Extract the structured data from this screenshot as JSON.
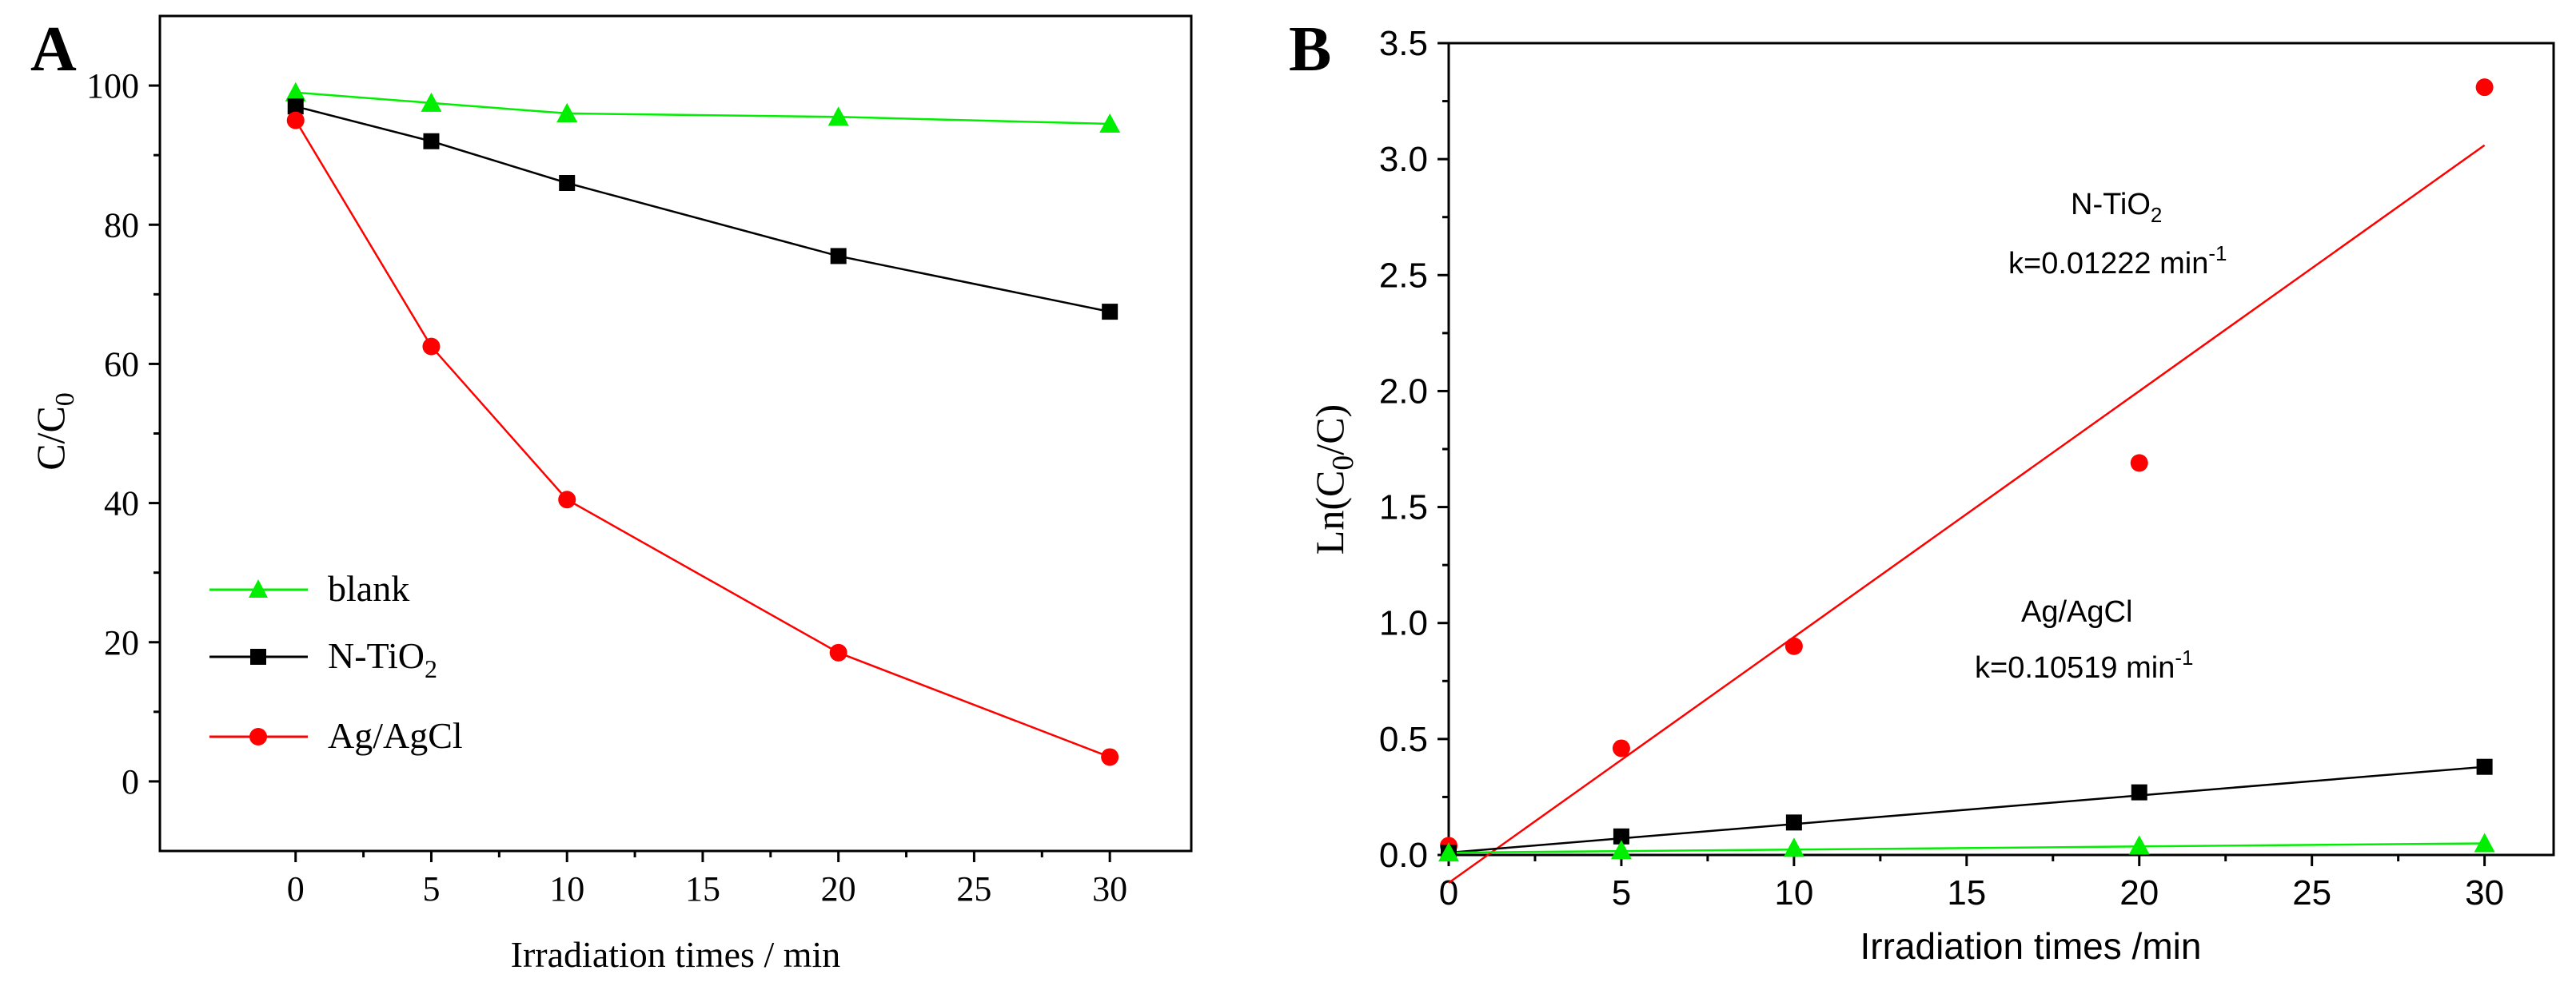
{
  "chart_data": [
    {
      "panel_label": "A",
      "type": "line",
      "xlabel": "Irradiation times / min",
      "ylabel": "C/C",
      "ylabel_sub": "0",
      "xlim": [
        -5,
        33
      ],
      "ylim": [
        -10,
        110
      ],
      "xticks": [
        0,
        5,
        10,
        15,
        20,
        25,
        30
      ],
      "yticks": [
        0,
        20,
        40,
        60,
        80,
        100
      ],
      "grid": false,
      "legend_position": "bottom-left",
      "series": [
        {
          "name": "blank",
          "name_main": "blank",
          "name_sub": "",
          "marker": "triangle",
          "color": "#00ee00",
          "x": [
            0,
            5,
            10,
            20,
            30
          ],
          "y": [
            99,
            97.5,
            96,
            95.5,
            94.5
          ]
        },
        {
          "name": "N-TiO2",
          "name_main": "N-TiO",
          "name_sub": "2",
          "marker": "square",
          "color": "#000000",
          "x": [
            0,
            5,
            10,
            20,
            30
          ],
          "y": [
            97,
            92,
            86,
            75.5,
            67.5
          ]
        },
        {
          "name": "Ag/AgCl",
          "name_main": "Ag/AgCl",
          "name_sub": "",
          "marker": "circle",
          "color": "#ff0000",
          "x": [
            0,
            5,
            10,
            20,
            30
          ],
          "y": [
            95,
            62.5,
            40.5,
            18.5,
            3.5
          ]
        }
      ]
    },
    {
      "panel_label": "B",
      "type": "scatter",
      "xlabel": "Irradiation times /min",
      "ylabel": "Ln(C",
      "ylabel_sub": "0",
      "ylabel_tail": "/C)",
      "xlim": [
        0,
        32
      ],
      "ylim": [
        0,
        3.5
      ],
      "xticks": [
        0,
        5,
        10,
        15,
        20,
        25,
        30
      ],
      "yticks": [
        0.0,
        0.5,
        1.0,
        1.5,
        2.0,
        2.5,
        3.0,
        3.5
      ],
      "grid": false,
      "series": [
        {
          "name": "Ag/AgCl",
          "marker": "circle",
          "color": "#ff0000",
          "x": [
            0,
            5,
            10,
            20,
            30
          ],
          "y": [
            0.04,
            0.46,
            0.9,
            1.69,
            3.31
          ],
          "fit": {
            "x": [
              0,
              30
            ],
            "y": [
              -0.12,
              3.06
            ]
          }
        },
        {
          "name": "N-TiO2",
          "marker": "square",
          "color": "#000000",
          "x": [
            0,
            5,
            10,
            20,
            30
          ],
          "y": [
            0.01,
            0.08,
            0.14,
            0.27,
            0.38
          ],
          "fit": {
            "x": [
              0,
              30
            ],
            "y": [
              0.01,
              0.38
            ]
          }
        },
        {
          "name": "blank",
          "marker": "triangle",
          "color": "#00ee00",
          "x": [
            0,
            5,
            10,
            20,
            30
          ],
          "y": [
            0.01,
            0.02,
            0.03,
            0.04,
            0.05
          ],
          "fit": {
            "x": [
              0,
              30
            ],
            "y": [
              0.01,
              0.05
            ]
          }
        }
      ],
      "annotations": [
        {
          "line1_main": "N-TiO",
          "line1_sub": "2",
          "line2_main": "k=0.01222 min",
          "line2_sup": "-1"
        },
        {
          "line1_main": "Ag/AgCl",
          "line1_sub": "",
          "line2_main": "k=0.10519 min",
          "line2_sup": "-1"
        }
      ]
    }
  ]
}
